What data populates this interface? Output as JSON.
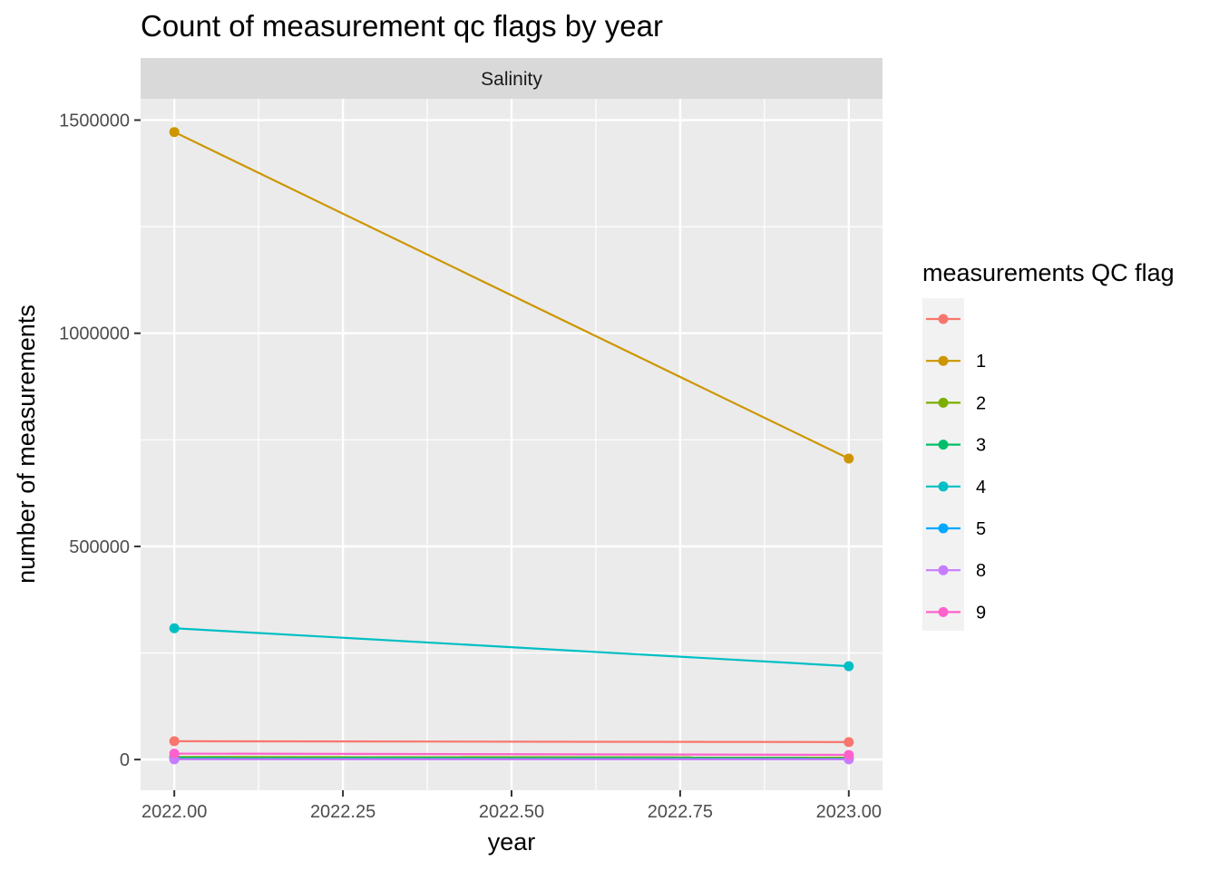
{
  "chart_data": {
    "type": "line",
    "title": "Count of measurement qc flags by year",
    "facet_label": "Salinity",
    "xlabel": "year",
    "ylabel": "number of measurements",
    "x_ticks": [
      "2022.00",
      "2022.25",
      "2022.50",
      "2022.75",
      "2023.00"
    ],
    "x_tick_values": [
      2022.0,
      2022.25,
      2022.5,
      2022.75,
      2023.0
    ],
    "y_ticks": [
      "0",
      "500000",
      "1000000",
      "1500000"
    ],
    "y_tick_values": [
      0,
      500000,
      1000000,
      1500000
    ],
    "xlim": [
      1999.95,
      2023.05
    ],
    "ylim": [
      -72000,
      1550000
    ],
    "grid": true,
    "legend_title": "measurements QC flag",
    "legend_position": "right",
    "x": [
      2022,
      2023
    ],
    "series": [
      {
        "name": "",
        "color": "#F8766D",
        "values": [
          43000,
          41000
        ]
      },
      {
        "name": "1",
        "color": "#CD9600",
        "values": [
          1472000,
          706000
        ]
      },
      {
        "name": "2",
        "color": "#7CAE00",
        "values": [
          6000,
          5000
        ]
      },
      {
        "name": "3",
        "color": "#00BE67",
        "values": [
          4000,
          3000
        ]
      },
      {
        "name": "4",
        "color": "#00BFC4",
        "values": [
          308000,
          219000
        ]
      },
      {
        "name": "5",
        "color": "#00A9FF",
        "values": [
          1000,
          1000
        ]
      },
      {
        "name": "8",
        "color": "#C77CFF",
        "values": [
          500,
          500
        ]
      },
      {
        "name": "9",
        "color": "#FF61CC",
        "values": [
          14000,
          11000
        ]
      }
    ]
  }
}
